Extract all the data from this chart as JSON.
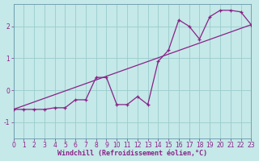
{
  "xlabel": "Windchill (Refroidissement éolien,°C)",
  "bg_color": "#c5e8e8",
  "line_color": "#882288",
  "grid_color": "#99cccc",
  "xlim": [
    0,
    23
  ],
  "ylim": [
    -1.5,
    2.7
  ],
  "xticks": [
    0,
    1,
    2,
    3,
    4,
    5,
    6,
    7,
    8,
    9,
    10,
    11,
    12,
    13,
    14,
    15,
    16,
    17,
    18,
    19,
    20,
    21,
    22,
    23
  ],
  "yticks": [
    -1,
    0,
    1,
    2
  ],
  "jagged_x": [
    0,
    1,
    2,
    3,
    4,
    5,
    6,
    7,
    8,
    9,
    10,
    11,
    12,
    13,
    14,
    15,
    16,
    17,
    18,
    19,
    20,
    21,
    22,
    23
  ],
  "jagged_y": [
    -0.6,
    -0.6,
    -0.6,
    -0.6,
    -0.55,
    -0.55,
    -0.3,
    -0.3,
    0.4,
    0.4,
    -0.45,
    -0.45,
    -0.2,
    -0.45,
    0.9,
    1.25,
    2.2,
    2.0,
    1.6,
    2.3,
    2.5,
    2.5,
    2.45,
    2.05
  ],
  "trend_x": [
    0,
    23
  ],
  "trend_y": [
    -0.6,
    2.05
  ],
  "marker_size": 3,
  "font_size_axis": 6,
  "font_size_tick": 5.5
}
